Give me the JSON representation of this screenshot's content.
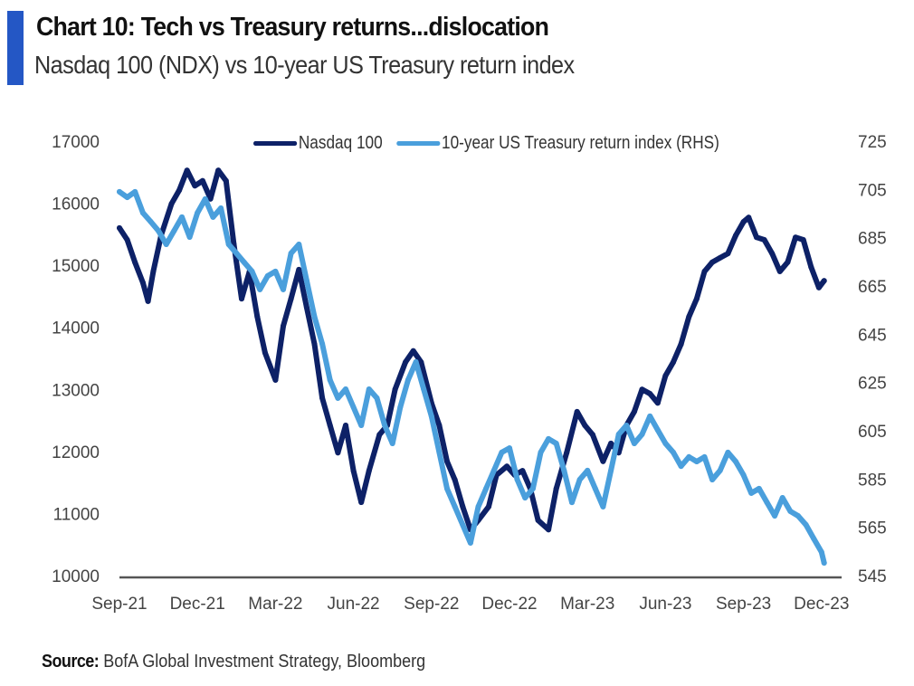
{
  "header": {
    "title": "Chart 10: Tech vs Treasury returns...dislocation",
    "subtitle": "Nasdaq 100 (NDX) vs 10-year US Treasury return index",
    "accent_color": "#2457c5"
  },
  "footer": {
    "source_label": "Source:",
    "source_text": "BofA Global Investment Strategy, Bloomberg"
  },
  "chart_data": {
    "type": "line",
    "title": "Chart 10: Tech vs Treasury returns...dislocation",
    "subtitle": "Nasdaq 100 (NDX) vs 10-year US Treasury return index",
    "x_unit": "months since Sep-21",
    "x_ticks": [
      "Sep-21",
      "Dec-21",
      "Mar-22",
      "Jun-22",
      "Sep-22",
      "Dec-22",
      "Mar-23",
      "Jun-23",
      "Sep-23",
      "Dec-23"
    ],
    "xlim": [
      0,
      27
    ],
    "y_left": {
      "label": "",
      "ylim": [
        10000,
        17000
      ],
      "ticks": [
        "17000",
        "16000",
        "15000",
        "14000",
        "13000",
        "12000",
        "11000",
        "10000"
      ]
    },
    "y_right": {
      "label": "",
      "ylim": [
        545,
        725
      ],
      "ticks": [
        "725",
        "705",
        "685",
        "665",
        "645",
        "625",
        "605",
        "585",
        "565",
        "545"
      ]
    },
    "grid": false,
    "legend_position": "top",
    "series": [
      {
        "name": "Nasdaq 100",
        "axis": "left",
        "color": "#0d2167",
        "x": [
          0.0,
          0.3,
          0.6,
          0.9,
          1.1,
          1.3,
          1.6,
          2.0,
          2.3,
          2.6,
          2.9,
          3.2,
          3.5,
          3.8,
          4.1,
          4.4,
          4.7,
          5.0,
          5.3,
          5.6,
          6.0,
          6.3,
          6.6,
          6.9,
          7.2,
          7.5,
          7.8,
          8.1,
          8.4,
          8.7,
          9.0,
          9.3,
          9.6,
          10.0,
          10.3,
          10.6,
          11.0,
          11.3,
          11.6,
          12.0,
          12.3,
          12.6,
          12.9,
          13.2,
          13.5,
          13.8,
          14.2,
          14.5,
          14.9,
          15.2,
          15.5,
          15.8,
          16.1,
          16.5,
          16.8,
          17.2,
          17.6,
          17.9,
          18.2,
          18.6,
          18.9,
          19.2,
          19.5,
          19.8,
          20.1,
          20.4,
          20.7,
          21.0,
          21.3,
          21.6,
          21.9,
          22.2,
          22.5,
          22.8,
          23.1,
          23.4,
          23.7,
          24.0,
          24.2,
          24.5,
          24.8,
          25.1,
          25.4,
          25.7,
          26.0,
          26.3,
          26.6,
          26.9,
          27.1
        ],
        "values": [
          15630,
          15440,
          15075,
          14750,
          14450,
          14930,
          15510,
          16020,
          16240,
          16560,
          16310,
          16390,
          16100,
          16560,
          16390,
          15370,
          14490,
          14930,
          14200,
          13620,
          13180,
          14050,
          14490,
          14960,
          14350,
          13760,
          12890,
          12450,
          12010,
          12450,
          11720,
          11210,
          11720,
          12300,
          12450,
          13030,
          13470,
          13650,
          13470,
          12810,
          12450,
          11870,
          11570,
          11140,
          10770,
          10920,
          11140,
          11650,
          11790,
          11650,
          11720,
          11430,
          10920,
          10770,
          11430,
          12010,
          12670,
          12450,
          12300,
          11870,
          12160,
          12010,
          12450,
          12670,
          13030,
          12960,
          12810,
          13250,
          13470,
          13760,
          14200,
          14490,
          14930,
          15080,
          15150,
          15220,
          15510,
          15730,
          15800,
          15480,
          15440,
          15220,
          14930,
          15080,
          15480,
          15440,
          15000,
          14670,
          14780
        ]
      },
      {
        "name": "10-year US Treasury return index (RHS)",
        "axis": "right",
        "color": "#4a9fdc",
        "x": [
          0.0,
          0.3,
          0.6,
          0.9,
          1.2,
          1.5,
          1.8,
          2.1,
          2.4,
          2.7,
          3.0,
          3.3,
          3.6,
          3.9,
          4.2,
          4.5,
          4.8,
          5.1,
          5.4,
          5.7,
          6.0,
          6.3,
          6.6,
          6.9,
          7.2,
          7.5,
          7.8,
          8.1,
          8.4,
          8.7,
          9.0,
          9.3,
          9.6,
          9.9,
          10.2,
          10.5,
          10.8,
          11.1,
          11.4,
          11.7,
          12.0,
          12.3,
          12.6,
          12.9,
          13.2,
          13.5,
          13.8,
          14.1,
          14.4,
          14.7,
          15.0,
          15.3,
          15.6,
          15.9,
          16.2,
          16.5,
          16.8,
          17.1,
          17.4,
          17.7,
          18.0,
          18.3,
          18.6,
          18.9,
          19.2,
          19.5,
          19.8,
          20.1,
          20.4,
          20.7,
          21.0,
          21.3,
          21.6,
          21.9,
          22.2,
          22.5,
          22.8,
          23.1,
          23.4,
          23.7,
          24.0,
          24.3,
          24.6,
          24.9,
          25.2,
          25.5,
          25.8,
          26.1,
          26.4,
          26.7,
          27.0,
          27.1
        ],
        "values": [
          704.8,
          702.5,
          704.8,
          696.1,
          692.4,
          688.6,
          683.0,
          688.6,
          694.3,
          686.0,
          696.1,
          701.8,
          694.3,
          698.0,
          683.0,
          679.3,
          675.5,
          671.8,
          664.3,
          669.9,
          671.8,
          664.3,
          679.3,
          683.0,
          668.0,
          653.0,
          641.8,
          626.8,
          619.3,
          623.0,
          615.5,
          608.0,
          623.0,
          619.3,
          608.0,
          600.5,
          615.5,
          626.8,
          634.3,
          623.0,
          611.8,
          596.8,
          581.8,
          574.3,
          566.8,
          559.3,
          574.3,
          581.8,
          589.3,
          596.8,
          598.6,
          585.5,
          578.0,
          581.8,
          596.8,
          602.4,
          600.5,
          589.3,
          576.1,
          585.5,
          589.3,
          581.8,
          574.3,
          589.3,
          604.3,
          608.0,
          600.5,
          604.3,
          611.8,
          606.1,
          600.5,
          596.8,
          591.1,
          594.9,
          593.0,
          594.9,
          585.5,
          589.3,
          596.8,
          593.0,
          587.4,
          579.9,
          581.8,
          576.1,
          570.5,
          578.0,
          572.4,
          570.5,
          566.8,
          561.1,
          555.5,
          551.0
        ]
      }
    ]
  }
}
